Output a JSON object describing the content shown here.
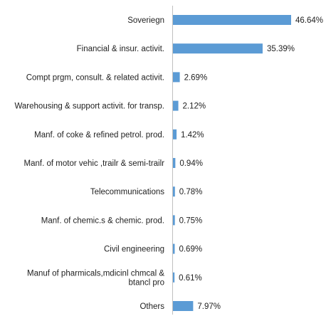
{
  "chart_data": {
    "type": "bar",
    "orientation": "horizontal",
    "categories": [
      "Soveriegn",
      "Financial & insur. activit.",
      "Compt prgm, consult. & related activit.",
      "Warehousing & support activit. for transp.",
      "Manf. of coke & refined petrol. prod.",
      "Manf. of motor vehic ,trailr & semi-trailr",
      "Telecommunications",
      "Manf. of chemic.s & chemic. prod.",
      "Civil engineering",
      [
        "Manuf of pharmicals,mdicinl chmcal &",
        "btancl pro"
      ],
      "Others"
    ],
    "values": [
      46.64,
      35.39,
      2.69,
      2.12,
      1.42,
      0.94,
      0.78,
      0.75,
      0.69,
      0.61,
      7.97
    ],
    "value_labels": [
      "46.64%",
      "35.39%",
      "2.69%",
      "2.12%",
      "1.42%",
      "0.94%",
      "0.78%",
      "0.75%",
      "0.69%",
      "0.61%",
      "7.97%"
    ],
    "bar_color": "#5b9bd5",
    "axis_color": "#bfbfbf",
    "xlim": [
      0,
      46.64
    ],
    "grid": false,
    "legend": "none"
  }
}
